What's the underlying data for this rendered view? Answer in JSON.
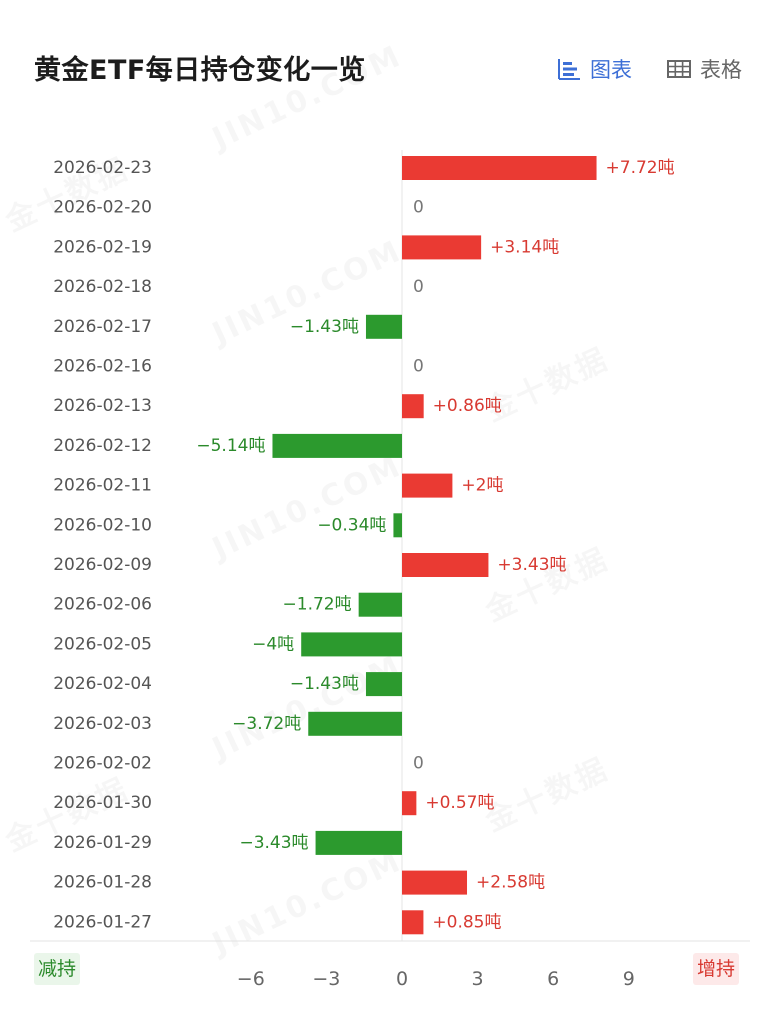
{
  "header": {
    "title": "黄金ETF每日持仓变化一览",
    "chart_toggle_label": "图表",
    "table_toggle_label": "表格"
  },
  "colors": {
    "increase": "#ea3a33",
    "decrease": "#2c9a2e",
    "increase_text": "#d83a32",
    "decrease_text": "#2b8a2b",
    "zero_text": "#777777",
    "accent": "#3d6fd6"
  },
  "legend": {
    "decrease_label": "减持",
    "increase_label": "增持"
  },
  "watermarks": {
    "site": "JIN10.COM",
    "brand": "金十数据"
  },
  "chart_data": {
    "type": "bar",
    "orientation": "horizontal",
    "unit": "吨",
    "categories": [
      "2026-02-23",
      "2026-02-20",
      "2026-02-19",
      "2026-02-18",
      "2026-02-17",
      "2026-02-16",
      "2026-02-13",
      "2026-02-12",
      "2026-02-11",
      "2026-02-10",
      "2026-02-09",
      "2026-02-06",
      "2026-02-05",
      "2026-02-04",
      "2026-02-03",
      "2026-02-02",
      "2026-01-30",
      "2026-01-29",
      "2026-01-28",
      "2026-01-27"
    ],
    "values": [
      7.72,
      0,
      3.14,
      0,
      -1.43,
      0,
      0.86,
      -5.14,
      2,
      -0.34,
      3.43,
      -1.72,
      -4,
      -1.43,
      -3.72,
      0,
      0.57,
      -3.43,
      2.58,
      0.85
    ],
    "value_labels": [
      "+7.72吨",
      "0",
      "+3.14吨",
      "0",
      "−1.43吨",
      "0",
      "+0.86吨",
      "−5.14吨",
      "+2吨",
      "−0.34吨",
      "+3.43吨",
      "−1.72吨",
      "−4吨",
      "−1.43吨",
      "−3.72吨",
      "0",
      "+0.57吨",
      "−3.43吨",
      "+2.58吨",
      "+0.85吨"
    ],
    "xticks": [
      "−6",
      "−3",
      "0",
      "3",
      "6",
      "9"
    ],
    "xtick_values": [
      -6,
      -3,
      0,
      3,
      6,
      9
    ],
    "xlim": [
      -9,
      12
    ],
    "title": "",
    "xlabel": "",
    "ylabel": ""
  }
}
